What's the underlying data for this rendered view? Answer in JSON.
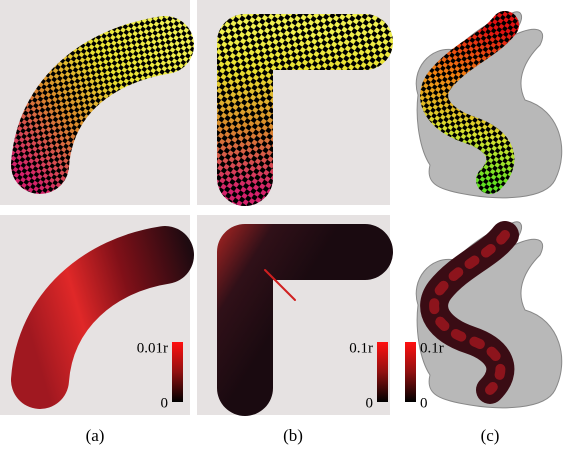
{
  "panels": [
    {
      "label": "(a)",
      "colorbar": {
        "max": "0.01r",
        "min": "0"
      }
    },
    {
      "label": "(b)",
      "colorbar": {
        "max": "0.1r",
        "min": "0"
      }
    },
    {
      "label": "(c)",
      "colorbar": {
        "max": "0.1r",
        "min": "0"
      }
    }
  ]
}
